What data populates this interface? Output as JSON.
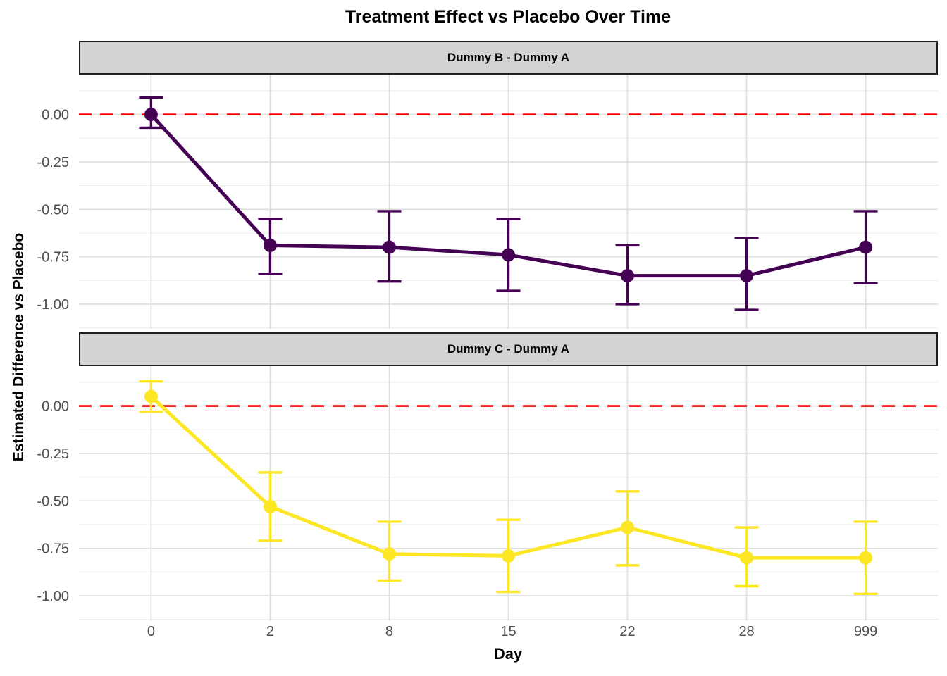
{
  "chart_data": {
    "type": "line",
    "title": "Treatment Effect vs Placebo Over Time",
    "xlabel": "Day",
    "ylabel": "Estimated Difference vs Placebo",
    "categories": [
      "0",
      "2",
      "8",
      "15",
      "22",
      "28",
      "999"
    ],
    "y_ticks": [
      {
        "label": "0.00",
        "value": 0
      },
      {
        "label": "-0.25",
        "value": -0.25
      },
      {
        "label": "-0.50",
        "value": -0.5
      },
      {
        "label": "-0.75",
        "value": -0.75
      },
      {
        "label": "-1.00",
        "value": -1.0
      }
    ],
    "y_minor_ticks": [
      0.125,
      -0.125,
      -0.375,
      -0.625,
      -0.875,
      -1.125
    ],
    "ylim": [
      -1.13,
      0.21
    ],
    "grid": "major+minor horizontal, major vertical",
    "legend": "none",
    "reference_line": {
      "value": 0,
      "style": "dashed",
      "color": "#ff0000"
    },
    "facets": [
      {
        "label": "Dummy B - Dummy A",
        "color": "#440154",
        "x": [
          "0",
          "2",
          "8",
          "15",
          "22",
          "28",
          "999"
        ],
        "series": [
          {
            "name": "estimate",
            "values": [
              0.0,
              -0.69,
              -0.7,
              -0.74,
              -0.85,
              -0.85,
              -0.7
            ]
          },
          {
            "name": "ci_high",
            "values": [
              0.09,
              -0.55,
              -0.51,
              -0.55,
              -0.69,
              -0.65,
              -0.51
            ]
          },
          {
            "name": "ci_low",
            "values": [
              -0.07,
              -0.84,
              -0.88,
              -0.93,
              -1.0,
              -1.03,
              -0.89
            ]
          }
        ]
      },
      {
        "label": "Dummy C - Dummy A",
        "color": "#fde725",
        "x": [
          "0",
          "2",
          "8",
          "15",
          "22",
          "28",
          "999"
        ],
        "series": [
          {
            "name": "estimate",
            "values": [
              0.05,
              -0.53,
              -0.78,
              -0.79,
              -0.64,
              -0.8,
              -0.8
            ]
          },
          {
            "name": "ci_high",
            "values": [
              0.13,
              -0.35,
              -0.61,
              -0.6,
              -0.45,
              -0.64,
              -0.61
            ]
          },
          {
            "name": "ci_low",
            "values": [
              -0.03,
              -0.71,
              -0.92,
              -0.98,
              -0.84,
              -0.95,
              -0.99
            ]
          }
        ]
      }
    ]
  },
  "colors": {
    "facet_b": "#440154",
    "facet_c": "#fde725",
    "reference": "#ff0000",
    "strip_background": "#d3d3d3",
    "strip_border": "#1f1f1f",
    "grid_major": "#dedede",
    "grid_minor": "#ececec",
    "tick_text": "#4d4d4d",
    "background": "#ffffff"
  }
}
